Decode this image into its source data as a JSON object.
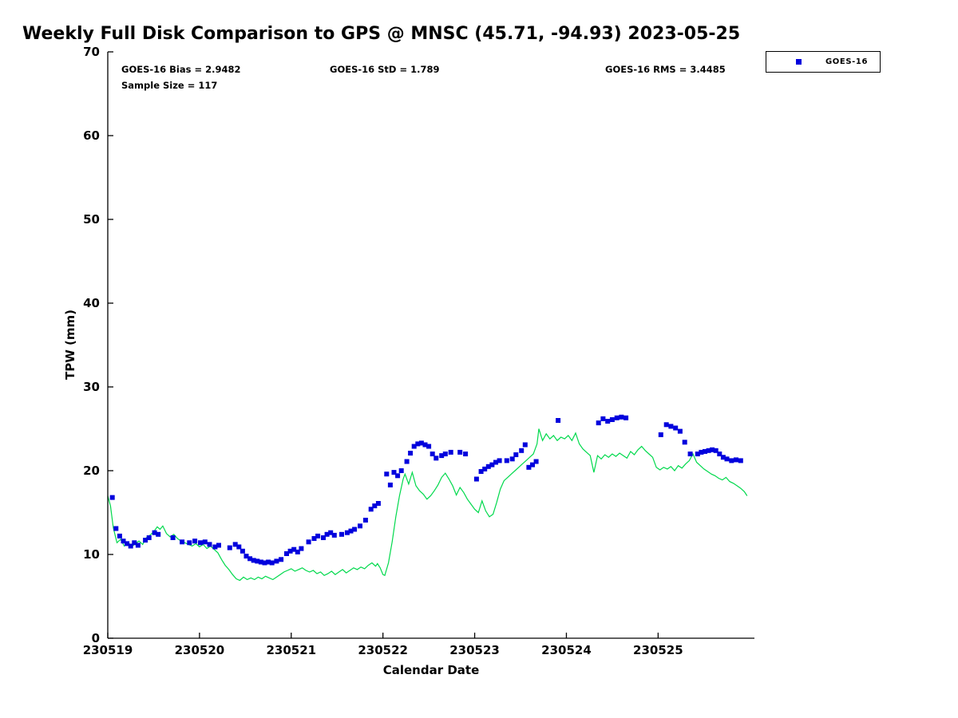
{
  "title": "Weekly Full Disk Comparison to GPS @ MNSC (45.71, -94.93) 2023-05-25",
  "annotations": {
    "bias": "GOES-16 Bias = 2.9482",
    "std": "GOES-16 StD = 1.789",
    "rms": "GOES-16 RMS = 3.4485",
    "sample_size": "Sample Size = 117"
  },
  "legend": {
    "position": "top-right-outside",
    "entries": [
      {
        "label": "GOES-16",
        "marker": "square",
        "color": "#0000dd"
      }
    ]
  },
  "chart_data": {
    "type": "scatter",
    "title": "Weekly Full Disk Comparison to GPS @ MNSC (45.71, -94.93) 2023-05-25",
    "xlabel": "Calendar Date",
    "ylabel": "TPW (mm)",
    "xlim": [
      230519,
      230526.05
    ],
    "ylim": [
      0,
      70
    ],
    "x_ticks": [
      230519,
      230520,
      230521,
      230522,
      230523,
      230524,
      230525
    ],
    "y_ticks": [
      0,
      10,
      20,
      30,
      40,
      50,
      60,
      70
    ],
    "grid": false,
    "axis_color": "#000000",
    "series": [
      {
        "name": "GOES-16",
        "type": "scatter",
        "marker": "square",
        "color": "#0000dd",
        "x": [
          230519.05,
          230519.09,
          230519.13,
          230519.17,
          230519.21,
          230519.25,
          230519.29,
          230519.33,
          230519.41,
          230519.45,
          230519.51,
          230519.55,
          230519.71,
          230519.81,
          230519.89,
          230519.95,
          230520.01,
          230520.06,
          230520.11,
          230520.17,
          230520.21,
          230520.33,
          230520.39,
          230520.43,
          230520.47,
          230520.51,
          230520.55,
          230520.59,
          230520.63,
          230520.67,
          230520.71,
          230520.75,
          230520.79,
          230520.84,
          230520.89,
          230520.95,
          230520.99,
          230521.03,
          230521.07,
          230521.11,
          230521.19,
          230521.25,
          230521.29,
          230521.35,
          230521.39,
          230521.43,
          230521.47,
          230521.55,
          230521.61,
          230521.65,
          230521.69,
          230521.75,
          230521.81,
          230521.87,
          230521.91,
          230521.95,
          230522.04,
          230522.08,
          230522.12,
          230522.16,
          230522.2,
          230522.26,
          230522.3,
          230522.34,
          230522.38,
          230522.42,
          230522.46,
          230522.5,
          230522.54,
          230522.58,
          230522.64,
          230522.68,
          230522.74,
          230522.84,
          230522.9,
          230523.02,
          230523.07,
          230523.11,
          230523.15,
          230523.19,
          230523.23,
          230523.27,
          230523.35,
          230523.41,
          230523.45,
          230523.51,
          230523.55,
          230523.59,
          230523.63,
          230523.67,
          230523.91,
          230524.35,
          230524.4,
          230524.45,
          230524.5,
          230524.55,
          230524.6,
          230524.65,
          230525.03,
          230525.09,
          230525.14,
          230525.19,
          230525.24,
          230525.29,
          230525.35,
          230525.43,
          230525.47,
          230525.51,
          230525.55,
          230525.59,
          230525.63,
          230525.67,
          230525.71,
          230525.75,
          230525.8,
          230525.85,
          230525.9
        ],
        "y": [
          16.8,
          13.1,
          12.2,
          11.6,
          11.3,
          11.0,
          11.4,
          11.1,
          11.7,
          12.0,
          12.6,
          12.4,
          12.0,
          11.5,
          11.4,
          11.6,
          11.4,
          11.5,
          11.2,
          10.9,
          11.1,
          10.8,
          11.2,
          10.9,
          10.4,
          9.8,
          9.5,
          9.3,
          9.2,
          9.1,
          9.0,
          9.1,
          9.0,
          9.2,
          9.4,
          10.1,
          10.4,
          10.6,
          10.3,
          10.7,
          11.5,
          11.9,
          12.2,
          12.0,
          12.4,
          12.6,
          12.3,
          12.4,
          12.6,
          12.8,
          13.0,
          13.4,
          14.1,
          15.4,
          15.8,
          16.1,
          19.6,
          18.3,
          19.8,
          19.4,
          20.0,
          21.1,
          22.1,
          22.9,
          23.2,
          23.3,
          23.1,
          22.9,
          22.0,
          21.5,
          21.8,
          22.0,
          22.2,
          22.2,
          22.0,
          19.0,
          19.9,
          20.2,
          20.5,
          20.7,
          21.0,
          21.2,
          21.2,
          21.4,
          21.9,
          22.4,
          23.1,
          20.4,
          20.7,
          21.1,
          26.0,
          25.7,
          26.2,
          25.9,
          26.1,
          26.3,
          26.4,
          26.3,
          24.3,
          25.5,
          25.3,
          25.1,
          24.7,
          23.4,
          22.0,
          22.0,
          22.2,
          22.3,
          22.4,
          22.5,
          22.4,
          22.0,
          21.6,
          21.4,
          21.2,
          21.3,
          21.2
        ]
      },
      {
        "name": "GPS",
        "type": "line",
        "color": "#00d94c",
        "x": [
          230519.0,
          230519.03,
          230519.06,
          230519.1,
          230519.14,
          230519.18,
          230519.22,
          230519.26,
          230519.3,
          230519.34,
          230519.38,
          230519.42,
          230519.46,
          230519.5,
          230519.54,
          230519.57,
          230519.6,
          230519.64,
          230519.68,
          230519.72,
          230519.76,
          230519.8,
          230519.84,
          230519.88,
          230519.92,
          230519.96,
          230520.0,
          230520.04,
          230520.08,
          230520.12,
          230520.16,
          230520.2,
          230520.24,
          230520.28,
          230520.32,
          230520.36,
          230520.4,
          230520.44,
          230520.48,
          230520.52,
          230520.56,
          230520.6,
          230520.64,
          230520.68,
          230520.72,
          230520.76,
          230520.8,
          230520.84,
          230520.88,
          230520.92,
          230520.96,
          230521.0,
          230521.04,
          230521.08,
          230521.12,
          230521.16,
          230521.2,
          230521.24,
          230521.28,
          230521.32,
          230521.36,
          230521.4,
          230521.44,
          230521.48,
          230521.52,
          230521.56,
          230521.6,
          230521.64,
          230521.68,
          230521.72,
          230521.76,
          230521.8,
          230521.84,
          230521.88,
          230521.92,
          230521.94,
          230521.97,
          230522.0,
          230522.02,
          230522.06,
          230522.1,
          230522.14,
          230522.18,
          230522.22,
          230522.24,
          230522.28,
          230522.32,
          230522.36,
          230522.4,
          230522.44,
          230522.48,
          230522.52,
          230522.56,
          230522.6,
          230522.64,
          230522.68,
          230522.72,
          230522.76,
          230522.8,
          230522.84,
          230522.88,
          230522.92,
          230522.96,
          230523.0,
          230523.04,
          230523.08,
          230523.12,
          230523.16,
          230523.2,
          230523.24,
          230523.28,
          230523.32,
          230523.36,
          230523.4,
          230523.44,
          230523.48,
          230523.52,
          230523.56,
          230523.6,
          230523.64,
          230523.68,
          230523.7,
          230523.74,
          230523.78,
          230523.82,
          230523.86,
          230523.9,
          230523.94,
          230523.98,
          230524.02,
          230524.06,
          230524.1,
          230524.14,
          230524.18,
          230524.22,
          230524.26,
          230524.3,
          230524.34,
          230524.38,
          230524.42,
          230524.46,
          230524.5,
          230524.54,
          230524.58,
          230524.62,
          230524.66,
          230524.7,
          230524.74,
          230524.78,
          230524.82,
          230524.86,
          230524.9,
          230524.94,
          230524.98,
          230525.02,
          230525.06,
          230525.1,
          230525.14,
          230525.18,
          230525.22,
          230525.26,
          230525.3,
          230525.34,
          230525.38,
          230525.42,
          230525.46,
          230525.5,
          230525.54,
          230525.58,
          230525.62,
          230525.66,
          230525.7,
          230525.74,
          230525.78,
          230525.82,
          230525.86,
          230525.9,
          230525.94,
          230525.97
        ],
        "y": [
          17.0,
          15.8,
          13.2,
          11.4,
          11.8,
          11.0,
          11.5,
          10.9,
          11.3,
          11.6,
          11.2,
          12.0,
          12.3,
          12.7,
          13.3,
          13.0,
          13.4,
          12.5,
          12.1,
          12.4,
          11.9,
          11.6,
          11.4,
          11.2,
          11.0,
          11.3,
          10.9,
          11.2,
          10.7,
          11.0,
          10.6,
          10.2,
          9.4,
          8.7,
          8.2,
          7.6,
          7.1,
          6.9,
          7.3,
          7.0,
          7.2,
          7.0,
          7.3,
          7.1,
          7.4,
          7.2,
          7.0,
          7.3,
          7.6,
          7.9,
          8.1,
          8.3,
          8.0,
          8.2,
          8.4,
          8.1,
          7.9,
          8.1,
          7.7,
          7.9,
          7.5,
          7.7,
          8.0,
          7.6,
          7.9,
          8.2,
          7.8,
          8.1,
          8.4,
          8.2,
          8.5,
          8.3,
          8.7,
          9.0,
          8.6,
          8.9,
          8.4,
          7.6,
          7.5,
          9.0,
          11.5,
          14.5,
          17.0,
          19.0,
          19.6,
          18.4,
          19.8,
          18.2,
          17.6,
          17.2,
          16.6,
          17.0,
          17.6,
          18.3,
          19.2,
          19.7,
          19.0,
          18.2,
          17.1,
          18.0,
          17.4,
          16.6,
          16.0,
          15.4,
          15.0,
          16.4,
          15.2,
          14.5,
          14.8,
          16.2,
          17.8,
          18.8,
          19.2,
          19.6,
          20.0,
          20.4,
          20.8,
          21.2,
          21.6,
          22.0,
          23.2,
          25.0,
          23.6,
          24.4,
          23.8,
          24.2,
          23.6,
          24.0,
          23.8,
          24.2,
          23.6,
          24.5,
          23.2,
          22.6,
          22.2,
          21.8,
          19.8,
          21.8,
          21.4,
          21.9,
          21.6,
          22.0,
          21.7,
          22.1,
          21.8,
          21.5,
          22.3,
          21.9,
          22.5,
          22.9,
          22.4,
          22.0,
          21.6,
          20.4,
          20.1,
          20.4,
          20.2,
          20.5,
          20.0,
          20.6,
          20.3,
          20.8,
          21.2,
          22.0,
          21.0,
          20.6,
          20.2,
          19.9,
          19.6,
          19.4,
          19.1,
          18.9,
          19.2,
          18.7,
          18.5,
          18.2,
          17.9,
          17.5,
          17.0
        ]
      }
    ]
  }
}
